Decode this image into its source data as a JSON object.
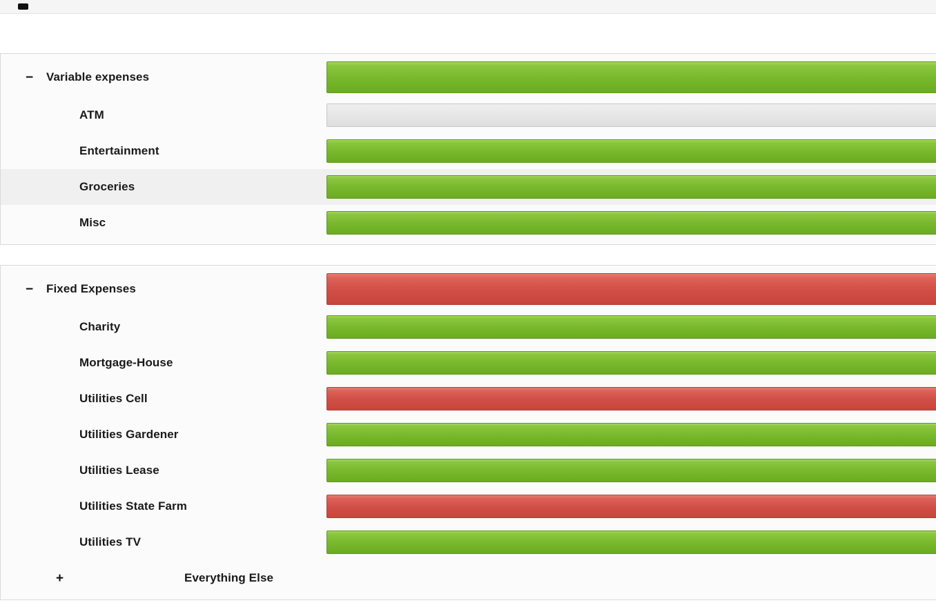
{
  "colors": {
    "on_track_green_top": "#8cc63f",
    "on_track_green_bottom": "#6cab21",
    "over_budget_red_top": "#dd6159",
    "over_budget_red_bottom": "#c7453c",
    "no_activity_gray": "#e8e8e8"
  },
  "groups": [
    {
      "label": "Variable expenses",
      "toggle": "−",
      "bar": "green",
      "children": [
        {
          "label": "ATM",
          "bar": "gray"
        },
        {
          "label": "Entertainment",
          "bar": "green"
        },
        {
          "label": "Groceries",
          "bar": "green"
        },
        {
          "label": "Misc",
          "bar": "green"
        }
      ]
    },
    {
      "label": "Fixed Expenses",
      "toggle": "−",
      "bar": "red",
      "children": [
        {
          "label": "Charity",
          "bar": "green"
        },
        {
          "label": "Mortgage-House",
          "bar": "green"
        },
        {
          "label": "Utilities Cell",
          "bar": "red"
        },
        {
          "label": "Utilities Gardener",
          "bar": "green"
        },
        {
          "label": "Utilities Lease",
          "bar": "green"
        },
        {
          "label": "Utilities State Farm",
          "bar": "red"
        },
        {
          "label": "Utilities TV",
          "bar": "green"
        }
      ],
      "everything_else": {
        "toggle": "+",
        "label": "Everything Else"
      }
    }
  ]
}
